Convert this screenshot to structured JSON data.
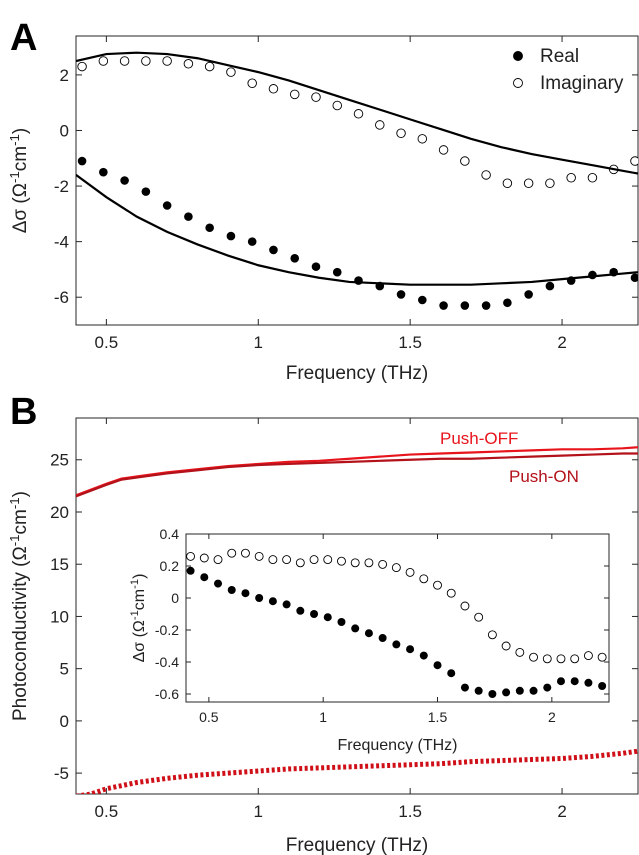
{
  "panel_labels": {
    "a": "A",
    "b": "B"
  },
  "chart_data": [
    {
      "type": "scatter",
      "panel": "A",
      "xlabel": "Frequency (THz)",
      "ylabel": "Δσ (Ω⁻¹cm⁻¹)",
      "xlim": [
        0.4,
        2.25
      ],
      "ylim": [
        -7,
        3.4
      ],
      "xticks": [
        0.5,
        1,
        1.5,
        2
      ],
      "xtick_labels": [
        "0.5",
        "1",
        "1.5",
        "2"
      ],
      "yticks": [
        -6,
        -4,
        -2,
        0,
        2
      ],
      "ytick_labels": [
        "-6",
        "-4",
        "-2",
        "0",
        "2"
      ],
      "grid": false,
      "legend": "top-right",
      "series": [
        {
          "name": "Real",
          "marker": "filled-circle",
          "color": "#000000",
          "x": [
            0.42,
            0.49,
            0.56,
            0.63,
            0.7,
            0.77,
            0.84,
            0.91,
            0.98,
            1.05,
            1.12,
            1.19,
            1.26,
            1.33,
            1.4,
            1.47,
            1.54,
            1.61,
            1.68,
            1.75,
            1.82,
            1.89,
            1.96,
            2.03,
            2.1,
            2.17,
            2.24
          ],
          "y": [
            -1.1,
            -1.5,
            -1.8,
            -2.2,
            -2.7,
            -3.1,
            -3.5,
            -3.8,
            -4.0,
            -4.3,
            -4.6,
            -4.9,
            -5.1,
            -5.4,
            -5.6,
            -5.9,
            -6.1,
            -6.3,
            -6.3,
            -6.3,
            -6.2,
            -5.9,
            -5.6,
            -5.4,
            -5.2,
            -5.1,
            -5.3
          ]
        },
        {
          "name": "Imaginary",
          "marker": "open-circle",
          "color": "#000000",
          "x": [
            0.42,
            0.49,
            0.56,
            0.63,
            0.7,
            0.77,
            0.84,
            0.91,
            0.98,
            1.05,
            1.12,
            1.19,
            1.26,
            1.33,
            1.4,
            1.47,
            1.54,
            1.61,
            1.68,
            1.75,
            1.82,
            1.89,
            1.96,
            2.03,
            2.1,
            2.17,
            2.24
          ],
          "y": [
            2.3,
            2.5,
            2.5,
            2.5,
            2.5,
            2.4,
            2.3,
            2.1,
            1.7,
            1.5,
            1.3,
            1.2,
            0.9,
            0.6,
            0.2,
            -0.1,
            -0.3,
            -0.7,
            -1.1,
            -1.6,
            -1.9,
            -1.9,
            -1.9,
            -1.7,
            -1.7,
            -1.4,
            -1.1
          ]
        },
        {
          "marker": "line",
          "color": "#000000",
          "x": [
            0.4,
            0.5,
            0.6,
            0.7,
            0.8,
            0.9,
            1.0,
            1.1,
            1.2,
            1.3,
            1.4,
            1.5,
            1.6,
            1.7,
            1.8,
            1.9,
            2.0,
            2.1,
            2.2,
            2.25
          ],
          "y": [
            2.5,
            2.75,
            2.8,
            2.75,
            2.6,
            2.35,
            2.1,
            1.8,
            1.45,
            1.1,
            0.75,
            0.4,
            0.05,
            -0.3,
            -0.6,
            -0.85,
            -1.05,
            -1.25,
            -1.45,
            -1.55
          ]
        },
        {
          "marker": "line",
          "color": "#000000",
          "x": [
            0.4,
            0.5,
            0.6,
            0.7,
            0.8,
            0.9,
            1.0,
            1.1,
            1.2,
            1.3,
            1.4,
            1.5,
            1.6,
            1.7,
            1.8,
            1.9,
            2.0,
            2.1,
            2.2,
            2.25
          ],
          "y": [
            -1.6,
            -2.4,
            -3.1,
            -3.65,
            -4.1,
            -4.5,
            -4.85,
            -5.1,
            -5.3,
            -5.45,
            -5.5,
            -5.55,
            -5.55,
            -5.55,
            -5.5,
            -5.45,
            -5.35,
            -5.25,
            -5.15,
            -5.1
          ]
        }
      ],
      "legend_entries": [
        {
          "label": "Real",
          "marker": "filled-circle"
        },
        {
          "label": "Imaginary",
          "marker": "open-circle"
        }
      ]
    },
    {
      "type": "line",
      "panel": "B",
      "xlabel": "Frequency (THz)",
      "ylabel": "Photoconductivity (Ω⁻¹cm⁻¹)",
      "xlim": [
        0.4,
        2.25
      ],
      "ylim": [
        -7,
        29
      ],
      "xticks": [
        0.5,
        1,
        1.5,
        2
      ],
      "xtick_labels": [
        "0.5",
        "1",
        "1.5",
        "2"
      ],
      "yticks": [
        -5,
        0,
        5,
        10,
        15,
        20,
        25
      ],
      "ytick_labels": [
        "-5",
        "0",
        "5",
        "10",
        "15",
        "20",
        "25"
      ],
      "grid": false,
      "series": [
        {
          "name": "Push-OFF",
          "color": "#e8141b",
          "style": "solid",
          "x": [
            0.4,
            0.5,
            0.55,
            0.6,
            0.7,
            0.8,
            0.9,
            1.0,
            1.1,
            1.2,
            1.3,
            1.4,
            1.5,
            1.6,
            1.7,
            1.8,
            1.9,
            2.0,
            2.1,
            2.2,
            2.25
          ],
          "y": [
            21.6,
            22.7,
            23.2,
            23.4,
            23.8,
            24.1,
            24.4,
            24.6,
            24.8,
            24.9,
            25.1,
            25.3,
            25.5,
            25.6,
            25.7,
            25.8,
            25.9,
            26.0,
            26.0,
            26.1,
            26.2
          ]
        },
        {
          "name": "Push-ON",
          "color": "#b3121a",
          "style": "solid",
          "x": [
            0.4,
            0.5,
            0.55,
            0.6,
            0.7,
            0.8,
            0.9,
            1.0,
            1.1,
            1.2,
            1.3,
            1.4,
            1.5,
            1.6,
            1.7,
            1.8,
            1.9,
            2.0,
            2.1,
            2.2,
            2.25
          ],
          "y": [
            21.5,
            22.6,
            23.1,
            23.3,
            23.7,
            24.0,
            24.3,
            24.5,
            24.6,
            24.7,
            24.8,
            24.9,
            25.0,
            25.1,
            25.1,
            25.2,
            25.3,
            25.4,
            25.5,
            25.6,
            25.6
          ]
        },
        {
          "color": "#d01018",
          "style": "dotted",
          "x": [
            0.4,
            0.45,
            0.5,
            0.55,
            0.6,
            0.7,
            0.8,
            0.9,
            1.0,
            1.1,
            1.2,
            1.3,
            1.4,
            1.5,
            1.6,
            1.7,
            1.8,
            1.9,
            2.0,
            2.1,
            2.2,
            2.25
          ],
          "y": [
            -7.2,
            -7.0,
            -6.5,
            -6.2,
            -5.9,
            -5.5,
            -5.2,
            -5.0,
            -4.8,
            -4.6,
            -4.5,
            -4.4,
            -4.3,
            -4.2,
            -4.1,
            -3.9,
            -3.8,
            -3.7,
            -3.6,
            -3.4,
            -3.1,
            -2.9
          ]
        }
      ],
      "annotations": [
        "Push-OFF",
        "Push-ON"
      ]
    },
    {
      "type": "scatter",
      "panel": "B-inset",
      "xlabel": "Frequency (THz)",
      "ylabel": "Δσ (Ω⁻¹cm⁻¹)",
      "xlim": [
        0.4,
        2.25
      ],
      "ylim": [
        -0.65,
        0.4
      ],
      "xticks": [
        0.5,
        1,
        1.5,
        2
      ],
      "xtick_labels": [
        "0.5",
        "1",
        "1.5",
        "2"
      ],
      "yticks": [
        -0.6,
        -0.4,
        -0.2,
        0,
        0.2,
        0.4
      ],
      "ytick_labels": [
        "-0.6",
        "-0.4",
        "-0.2",
        "0",
        "0.2",
        "0.4"
      ],
      "grid": false,
      "series": [
        {
          "marker": "filled-circle",
          "color": "#000000",
          "x": [
            0.42,
            0.48,
            0.54,
            0.6,
            0.66,
            0.72,
            0.78,
            0.84,
            0.9,
            0.96,
            1.02,
            1.08,
            1.14,
            1.2,
            1.26,
            1.32,
            1.38,
            1.44,
            1.5,
            1.56,
            1.62,
            1.68,
            1.74,
            1.8,
            1.86,
            1.92,
            1.98,
            2.04,
            2.1,
            2.16,
            2.22
          ],
          "y": [
            0.17,
            0.13,
            0.09,
            0.05,
            0.03,
            0.0,
            -0.02,
            -0.04,
            -0.08,
            -0.1,
            -0.12,
            -0.15,
            -0.19,
            -0.22,
            -0.25,
            -0.29,
            -0.32,
            -0.36,
            -0.42,
            -0.47,
            -0.56,
            -0.58,
            -0.6,
            -0.59,
            -0.58,
            -0.58,
            -0.56,
            -0.52,
            -0.52,
            -0.53,
            -0.55
          ]
        },
        {
          "marker": "open-circle",
          "color": "#000000",
          "x": [
            0.42,
            0.48,
            0.54,
            0.6,
            0.66,
            0.72,
            0.78,
            0.84,
            0.9,
            0.96,
            1.02,
            1.08,
            1.14,
            1.2,
            1.26,
            1.32,
            1.38,
            1.44,
            1.5,
            1.56,
            1.62,
            1.68,
            1.74,
            1.8,
            1.86,
            1.92,
            1.98,
            2.04,
            2.1,
            2.16,
            2.22
          ],
          "y": [
            0.26,
            0.25,
            0.24,
            0.28,
            0.28,
            0.26,
            0.24,
            0.24,
            0.22,
            0.24,
            0.24,
            0.23,
            0.22,
            0.22,
            0.21,
            0.19,
            0.16,
            0.12,
            0.08,
            0.03,
            -0.05,
            -0.12,
            -0.23,
            -0.3,
            -0.34,
            -0.37,
            -0.38,
            -0.38,
            -0.38,
            -0.36,
            -0.37
          ]
        }
      ]
    }
  ]
}
